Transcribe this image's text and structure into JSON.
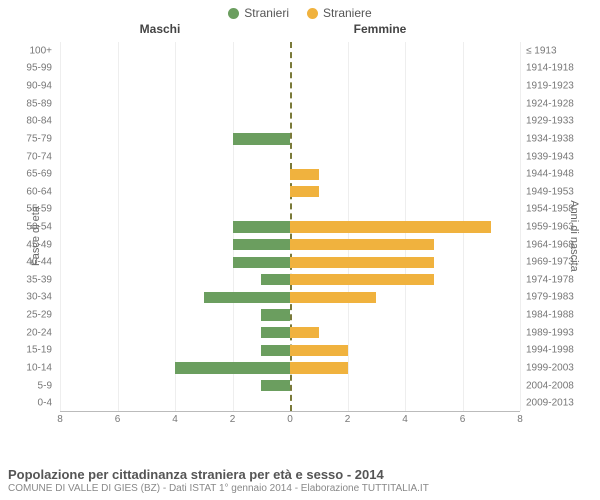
{
  "legend": {
    "male": {
      "label": "Stranieri",
      "color": "#6b9e5f"
    },
    "female": {
      "label": "Straniere",
      "color": "#f0b23e"
    }
  },
  "headers": {
    "left": "Maschi",
    "right": "Femmine"
  },
  "axis": {
    "left_title": "Fasce di età",
    "right_title": "Anni di nascita",
    "xmax": 8,
    "xticks": [
      8,
      6,
      4,
      2,
      0,
      2,
      4,
      6,
      8
    ]
  },
  "chart": {
    "type": "population-pyramid",
    "bar_color_left": "#6b9e5f",
    "bar_color_right": "#f0b23e",
    "background_color": "#ffffff",
    "grid_color": "#eeeeee",
    "center_line_color": "#7a7a3a",
    "rows": [
      {
        "age": "100+",
        "birth": "≤ 1913",
        "m": 0,
        "f": 0
      },
      {
        "age": "95-99",
        "birth": "1914-1918",
        "m": 0,
        "f": 0
      },
      {
        "age": "90-94",
        "birth": "1919-1923",
        "m": 0,
        "f": 0
      },
      {
        "age": "85-89",
        "birth": "1924-1928",
        "m": 0,
        "f": 0
      },
      {
        "age": "80-84",
        "birth": "1929-1933",
        "m": 0,
        "f": 0
      },
      {
        "age": "75-79",
        "birth": "1934-1938",
        "m": 2,
        "f": 0
      },
      {
        "age": "70-74",
        "birth": "1939-1943",
        "m": 0,
        "f": 0
      },
      {
        "age": "65-69",
        "birth": "1944-1948",
        "m": 0,
        "f": 1
      },
      {
        "age": "60-64",
        "birth": "1949-1953",
        "m": 0,
        "f": 1
      },
      {
        "age": "55-59",
        "birth": "1954-1958",
        "m": 0,
        "f": 0
      },
      {
        "age": "50-54",
        "birth": "1959-1963",
        "m": 2,
        "f": 7
      },
      {
        "age": "45-49",
        "birth": "1964-1968",
        "m": 2,
        "f": 5
      },
      {
        "age": "40-44",
        "birth": "1969-1973",
        "m": 2,
        "f": 5
      },
      {
        "age": "35-39",
        "birth": "1974-1978",
        "m": 1,
        "f": 5
      },
      {
        "age": "30-34",
        "birth": "1979-1983",
        "m": 3,
        "f": 3
      },
      {
        "age": "25-29",
        "birth": "1984-1988",
        "m": 1,
        "f": 0
      },
      {
        "age": "20-24",
        "birth": "1989-1993",
        "m": 1,
        "f": 1
      },
      {
        "age": "15-19",
        "birth": "1994-1998",
        "m": 1,
        "f": 2
      },
      {
        "age": "10-14",
        "birth": "1999-2003",
        "m": 4,
        "f": 2
      },
      {
        "age": "5-9",
        "birth": "2004-2008",
        "m": 1,
        "f": 0
      },
      {
        "age": "0-4",
        "birth": "2009-2013",
        "m": 0,
        "f": 0
      }
    ]
  },
  "footer": {
    "title": "Popolazione per cittadinanza straniera per età e sesso - 2014",
    "subtitle": "COMUNE DI VALLE DI GIES (BZ) - Dati ISTAT 1° gennaio 2014 - Elaborazione TUTTITALIA.IT"
  }
}
